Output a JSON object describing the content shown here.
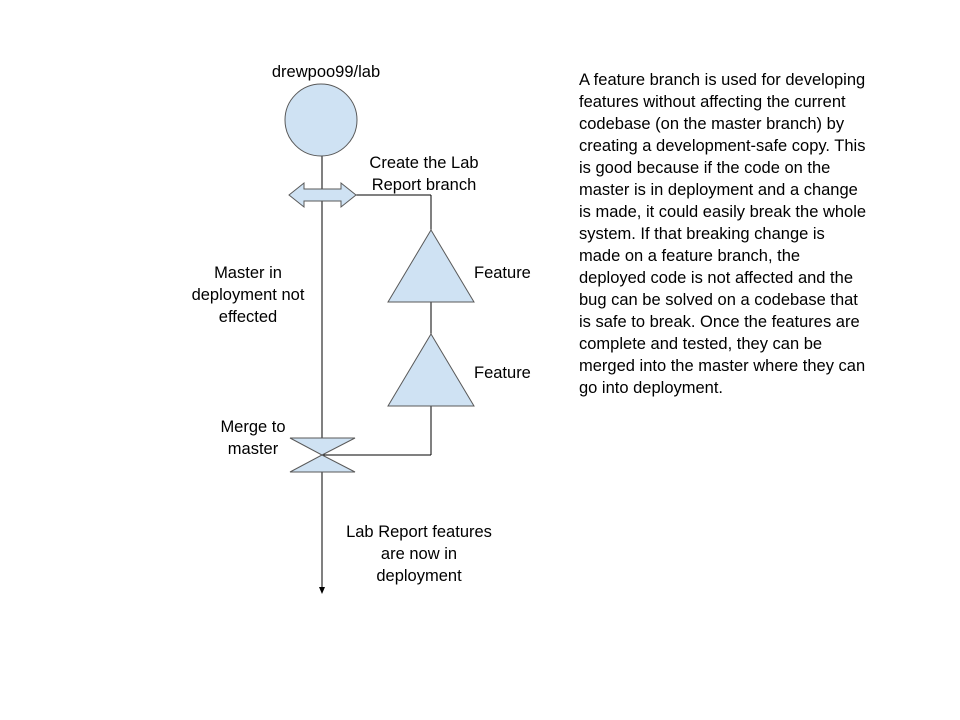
{
  "diagram": {
    "repo_label": "drewpoo99/lab",
    "create_branch_label": [
      "Create the Lab",
      "Report branch"
    ],
    "master_label": [
      "Master in",
      "deployment not",
      "effected"
    ],
    "feature_labels": [
      "Feature",
      "Feature"
    ],
    "merge_label": [
      "Merge to",
      "master"
    ],
    "result_label": [
      "Lab Report features",
      "are now in",
      "deployment"
    ]
  },
  "description": {
    "lines": [
      "A feature branch is used for developing",
      "features without affecting the current",
      "codebase (on the master branch) by",
      "creating a development-safe copy. This",
      "is good because if the code on the",
      "master is in deployment and a change",
      "is made, it could easily break the whole",
      "system. If that breaking change is",
      "made on a feature branch, the",
      "deployed code is not affected and the",
      "bug can be solved on a codebase that",
      "is safe to break. Once the features are",
      "complete and tested, they can be",
      "merged into the master where they can",
      "go into deployment."
    ]
  },
  "colors": {
    "shape_fill": "#cfe2f3",
    "shape_stroke": "#595959",
    "line": "#000000"
  }
}
